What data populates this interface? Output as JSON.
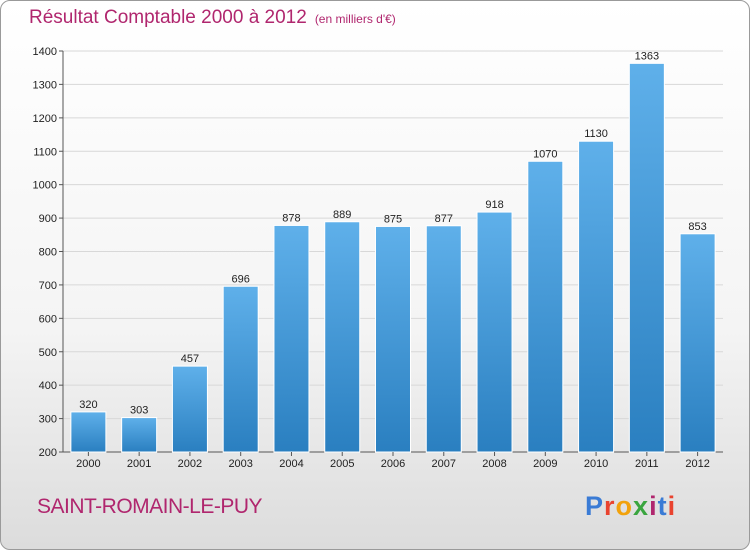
{
  "title": "Résultat Comptable 2000 à 2012",
  "subtitle": "(en milliers d'€)",
  "place_name": "SAINT-ROMAIN-LE-PUY",
  "logo": {
    "text": "Proxiti",
    "letters": [
      "P",
      "r",
      "o",
      "x",
      "i",
      "t",
      "i"
    ],
    "letter_colors": [
      "#3a7bd5",
      "#e9432f",
      "#f2a20c",
      "#3aa53f",
      "#b0266e",
      "#3a7bd5",
      "#e9432f"
    ]
  },
  "colors": {
    "accent": "#b0266e",
    "bar_top": "#5fb0ea",
    "bar_bottom": "#2a7fc0",
    "grid": "#d8d8d8"
  },
  "chart_data": {
    "type": "bar",
    "title": "Résultat Comptable 2000 à 2012",
    "subtitle": "(en milliers d'€)",
    "xlabel": "",
    "ylabel": "",
    "categories": [
      "2000",
      "2001",
      "2002",
      "2003",
      "2004",
      "2005",
      "2006",
      "2007",
      "2008",
      "2009",
      "2010",
      "2011",
      "2012"
    ],
    "values": [
      320,
      303,
      457,
      696,
      878,
      889,
      875,
      877,
      918,
      1070,
      1130,
      1363,
      853
    ],
    "value_labels": [
      "320",
      "303",
      "457",
      "696",
      "878",
      "889",
      "875",
      "877",
      "918",
      "1070",
      "1130",
      "1363",
      "853"
    ],
    "ylim": [
      200,
      1400
    ],
    "yticks": [
      200,
      300,
      400,
      500,
      600,
      700,
      800,
      900,
      1000,
      1100,
      1200,
      1300,
      1400
    ],
    "grid": true
  }
}
